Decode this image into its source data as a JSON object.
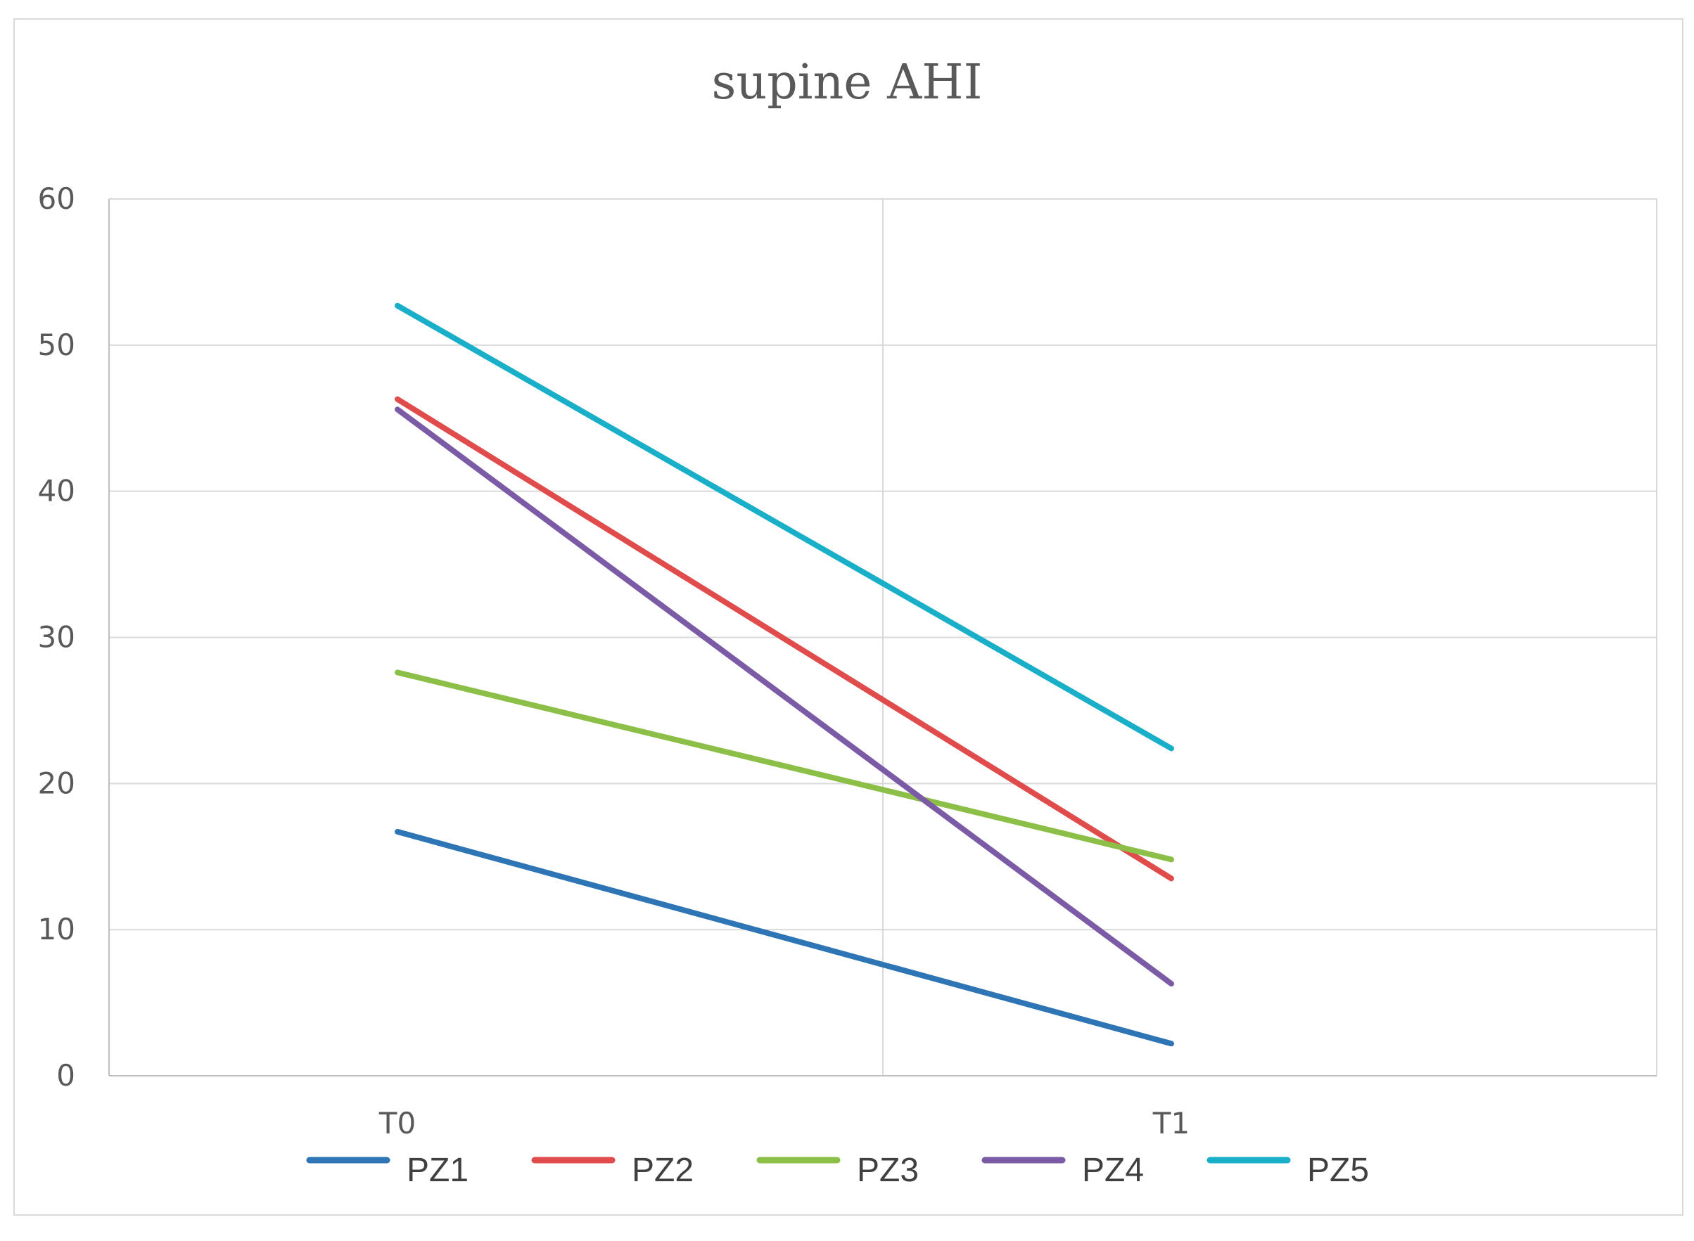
{
  "chart_data": {
    "type": "line",
    "title": "supine AHI",
    "xlabel": "",
    "ylabel": "",
    "categories": [
      "T0",
      "T1"
    ],
    "ylim": [
      0,
      60
    ],
    "yticks": [
      0,
      10,
      20,
      30,
      40,
      50,
      60
    ],
    "grid": true,
    "legend_position": "bottom",
    "series": [
      {
        "name": "PZ1",
        "values": [
          16.7,
          2.2
        ],
        "color": "#2E75B6"
      },
      {
        "name": "PZ2",
        "values": [
          46.3,
          13.5
        ],
        "color": "#E04B4B"
      },
      {
        "name": "PZ3",
        "values": [
          27.6,
          14.8
        ],
        "color": "#8CBF47"
      },
      {
        "name": "PZ4",
        "values": [
          45.6,
          6.3
        ],
        "color": "#7B5AA6"
      },
      {
        "name": "PZ5",
        "values": [
          52.7,
          22.4
        ],
        "color": "#1AAFC8"
      }
    ]
  }
}
